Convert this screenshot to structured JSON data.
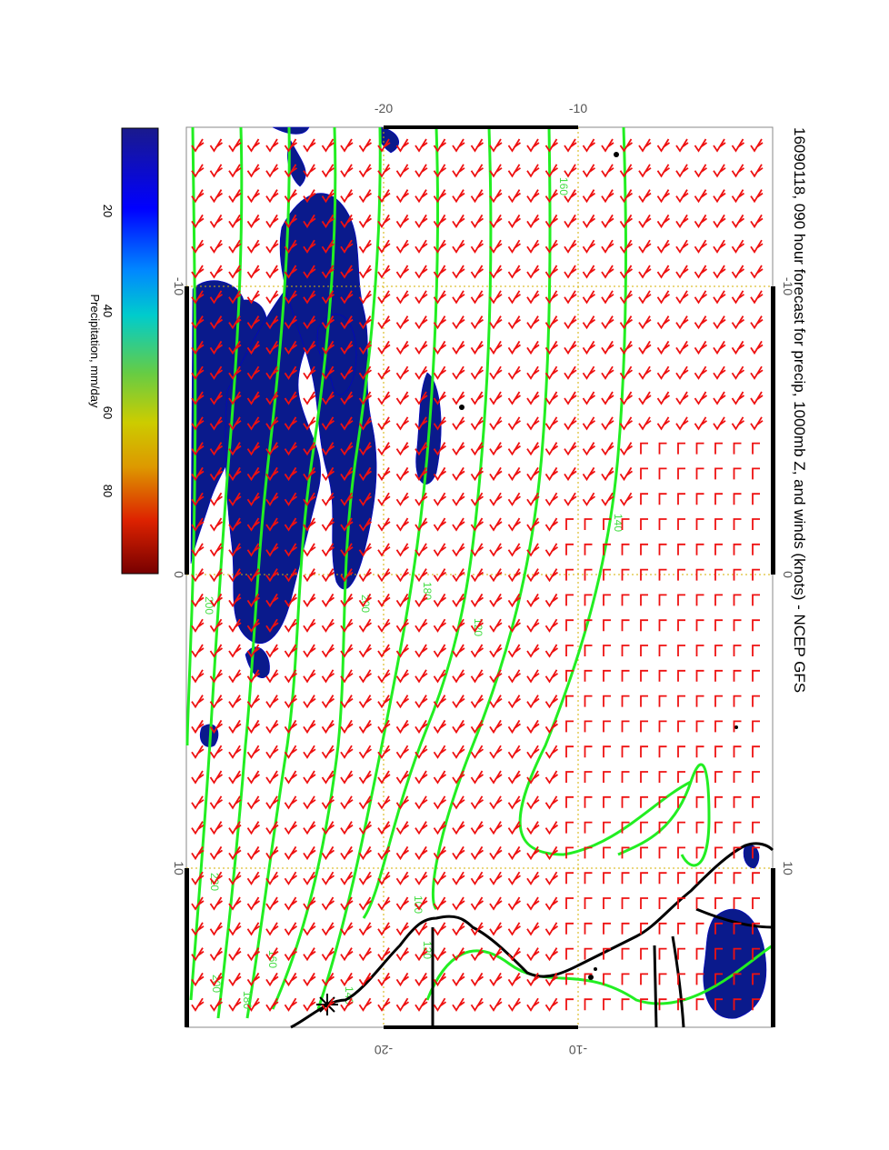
{
  "title": "16090118, 090 hour forecast for precip, 1000mb Z, and winds (knots) - NCEP GFS",
  "colorbar": {
    "label": "Precipitation, mm/day",
    "ticks": [
      "20",
      "40",
      "60",
      "80"
    ],
    "colors": [
      "#00008b",
      "#0000ff",
      "#0077ff",
      "#00bbff",
      "#00cccc",
      "#55cc55",
      "#aacc00",
      "#cccc00",
      "#ddaa00",
      "#ee6600",
      "#dd0000",
      "#770000"
    ]
  },
  "axes": {
    "left_ticks": [
      "-20",
      "-10"
    ],
    "right_ticks": [
      "-20",
      "-10"
    ],
    "top_ticks": [
      "-10",
      "0",
      "10"
    ],
    "bottom_ticks": [
      "-10",
      "0",
      "10"
    ]
  },
  "contours": {
    "color": "#22ee22",
    "labels": [
      "200",
      "180",
      "160",
      "140",
      "120",
      "100",
      "120",
      "140",
      "160",
      "180",
      "200",
      "220",
      "200"
    ]
  },
  "wind_barbs": {
    "color": "#ee1111"
  },
  "coastline": {
    "color": "#000000"
  },
  "precip_color": "#0a1a8c"
}
